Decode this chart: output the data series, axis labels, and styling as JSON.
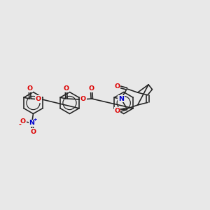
{
  "bg": "#e8e8e8",
  "bc": "#222222",
  "oc": "#dd0000",
  "nc": "#0000cc",
  "figsize": [
    3.0,
    3.0
  ],
  "dpi": 100,
  "lw": 1.15,
  "fs": 6.8,
  "xlim": [
    0,
    10
  ],
  "ylim": [
    1,
    9
  ]
}
